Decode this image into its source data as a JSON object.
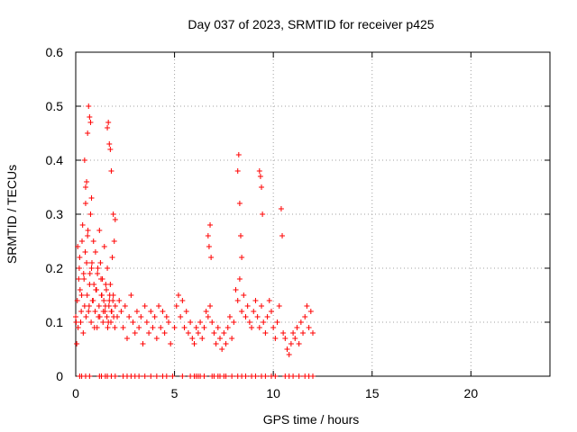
{
  "chart_data": {
    "type": "scatter",
    "title": "Day 037 of 2023, SRMTID for receiver p425",
    "xlabel": "GPS time / hours",
    "ylabel": "SRMTID / TECUs",
    "xlim": [
      0,
      24
    ],
    "ylim": [
      0,
      0.6
    ],
    "xticks": [
      0,
      5,
      10,
      15,
      20
    ],
    "xtick_labels": [
      "0",
      "5",
      "10",
      "15",
      "20"
    ],
    "yticks": [
      0,
      0.1,
      0.2,
      0.3,
      0.4,
      0.5,
      0.6
    ],
    "ytick_labels": [
      "0",
      "0.1",
      "0.2",
      "0.3",
      "0.4",
      "0.5",
      "0.6"
    ],
    "grid": true,
    "marker": "+",
    "color": "#ff0000",
    "series": [
      {
        "name": "SRMTID",
        "x": [
          0.0,
          0.05,
          0.1,
          0.15,
          0.2,
          0.25,
          0.3,
          0.35,
          0.4,
          0.45,
          0.5,
          0.55,
          0.6,
          0.65,
          0.7,
          0.75,
          0.8,
          0.85,
          0.9,
          0.95,
          1.0,
          1.05,
          1.1,
          1.15,
          1.2,
          1.25,
          1.3,
          1.35,
          1.4,
          1.45,
          1.5,
          1.55,
          1.6,
          1.65,
          1.7,
          1.75,
          1.8,
          1.85,
          1.9,
          1.95,
          2.0,
          2.1,
          2.2,
          2.3,
          2.4,
          2.5,
          2.6,
          2.7,
          2.8,
          2.9,
          3.0,
          3.1,
          3.2,
          3.3,
          3.4,
          3.5,
          3.6,
          3.7,
          3.8,
          3.9,
          4.0,
          4.1,
          4.2,
          4.3,
          4.4,
          4.5,
          4.6,
          4.7,
          4.8,
          5.0,
          5.1,
          5.2,
          5.3,
          5.4,
          5.5,
          5.6,
          5.7,
          5.8,
          5.9,
          6.0,
          6.1,
          6.2,
          6.3,
          6.4,
          6.5,
          6.6,
          6.7,
          6.8,
          6.9,
          7.0,
          7.1,
          7.2,
          7.3,
          7.4,
          7.5,
          7.6,
          7.7,
          7.8,
          7.9,
          8.0,
          8.1,
          8.2,
          8.3,
          8.4,
          8.5,
          8.6,
          8.7,
          8.8,
          8.9,
          9.0,
          9.1,
          9.2,
          9.3,
          9.4,
          9.5,
          9.6,
          9.7,
          9.8,
          9.9,
          10.0,
          10.1,
          10.2,
          10.3,
          10.5,
          10.6,
          10.7,
          10.8,
          10.9,
          11.0,
          11.1,
          11.2,
          11.3,
          11.4,
          11.5,
          11.6,
          11.7,
          11.8,
          11.9,
          12.0,
          0.02,
          0.08,
          0.12,
          0.18,
          0.22,
          0.28,
          0.32,
          0.38,
          0.42,
          0.48,
          0.52,
          0.58,
          0.62,
          0.68,
          0.72,
          0.78,
          0.82,
          0.88,
          0.92,
          0.98,
          1.02,
          1.08,
          1.12,
          1.18,
          1.22,
          1.28,
          1.32,
          1.38,
          1.42,
          1.48,
          1.52,
          1.58,
          1.62,
          1.68,
          1.72,
          1.78,
          1.82,
          1.88,
          1.92,
          1.98,
          0.6,
          0.65,
          0.7,
          0.75,
          1.6,
          1.65,
          1.7,
          1.75,
          1.8,
          0.45,
          0.5,
          0.55,
          0.8,
          1.9,
          2.0,
          6.7,
          6.75,
          6.8,
          6.85,
          8.2,
          8.25,
          8.3,
          8.35,
          8.4,
          9.3,
          9.35,
          9.4,
          9.45,
          10.4,
          10.45
        ],
        "y": [
          0.11,
          0.06,
          0.24,
          0.18,
          0.22,
          0.1,
          0.15,
          0.28,
          0.19,
          0.13,
          0.35,
          0.21,
          0.26,
          0.12,
          0.17,
          0.3,
          0.2,
          0.14,
          0.25,
          0.09,
          0.23,
          0.16,
          0.19,
          0.11,
          0.27,
          0.21,
          0.15,
          0.18,
          0.12,
          0.24,
          0.13,
          0.16,
          0.2,
          0.1,
          0.14,
          0.17,
          0.12,
          0.22,
          0.15,
          0.25,
          0.13,
          0.11,
          0.14,
          0.12,
          0.09,
          0.13,
          0.07,
          0.11,
          0.15,
          0.1,
          0.08,
          0.12,
          0.09,
          0.11,
          0.06,
          0.13,
          0.1,
          0.08,
          0.12,
          0.09,
          0.11,
          0.07,
          0.13,
          0.09,
          0.12,
          0.08,
          0.11,
          0.1,
          0.06,
          0.09,
          0.13,
          0.15,
          0.11,
          0.14,
          0.09,
          0.12,
          0.08,
          0.1,
          0.07,
          0.06,
          0.09,
          0.08,
          0.1,
          0.07,
          0.09,
          0.12,
          0.11,
          0.13,
          0.1,
          0.08,
          0.06,
          0.09,
          0.07,
          0.05,
          0.08,
          0.06,
          0.09,
          0.11,
          0.07,
          0.1,
          0.16,
          0.14,
          0.18,
          0.12,
          0.15,
          0.11,
          0.13,
          0.1,
          0.09,
          0.12,
          0.14,
          0.11,
          0.09,
          0.13,
          0.1,
          0.08,
          0.11,
          0.14,
          0.12,
          0.09,
          0.07,
          0.1,
          0.13,
          0.08,
          0.07,
          0.05,
          0.04,
          0.06,
          0.08,
          0.07,
          0.09,
          0.06,
          0.1,
          0.08,
          0.11,
          0.13,
          0.09,
          0.12,
          0.08,
          0.1,
          0.14,
          0.09,
          0.2,
          0.16,
          0.12,
          0.25,
          0.08,
          0.18,
          0.23,
          0.11,
          0.15,
          0.27,
          0.13,
          0.19,
          0.1,
          0.21,
          0.14,
          0.17,
          0.12,
          0.16,
          0.09,
          0.2,
          0.13,
          0.11,
          0.18,
          0.15,
          0.1,
          0.14,
          0.12,
          0.17,
          0.11,
          0.09,
          0.13,
          0.15,
          0.1,
          0.12,
          0.14,
          0.11,
          0.09,
          0.45,
          0.5,
          0.48,
          0.47,
          0.46,
          0.47,
          0.43,
          0.42,
          0.38,
          0.4,
          0.32,
          0.36,
          0.33,
          0.3,
          0.29,
          0.26,
          0.24,
          0.28,
          0.22,
          0.38,
          0.41,
          0.32,
          0.26,
          0.22,
          0.38,
          0.37,
          0.35,
          0.3,
          0.31,
          0.26
        ],
        "zero_x": [
          0.2,
          0.3,
          0.5,
          0.7,
          1.2,
          1.3,
          1.5,
          1.6,
          1.8,
          2.0,
          2.4,
          2.6,
          2.8,
          3.0,
          3.2,
          3.5,
          3.8,
          4.1,
          4.4,
          4.6,
          4.9,
          5.4,
          5.8,
          6.0,
          6.1,
          6.2,
          6.3,
          6.5,
          6.9,
          7.0,
          7.2,
          7.3,
          7.5,
          7.6,
          7.9,
          8.2,
          8.4,
          8.6,
          8.9,
          9.1,
          9.4,
          9.6,
          9.9,
          10.1,
          10.6,
          10.8,
          11.0,
          11.3,
          11.6,
          11.8,
          12.0
        ]
      }
    ]
  }
}
